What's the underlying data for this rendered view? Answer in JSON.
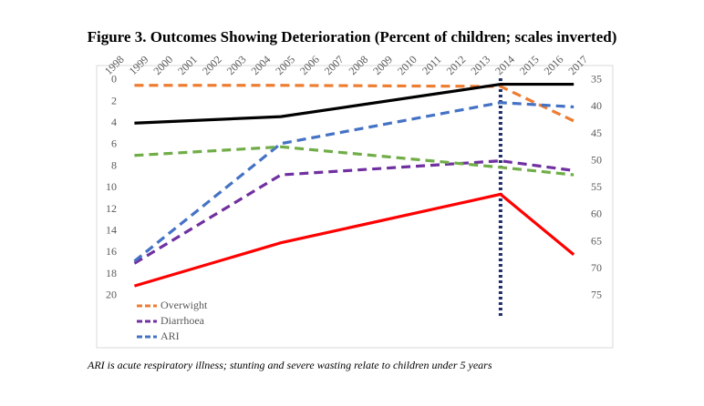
{
  "chart_data": {
    "type": "line",
    "title": "Figure 3. Outcomes Showing Deterioration (Percent of children; scales inverted)",
    "note": "ARI is acute respiratory illness; stunting and severe wasting relate to children under 5 years",
    "x": [
      1999,
      2005,
      2014,
      2017
    ],
    "xlim": [
      1997.9,
      2018.6
    ],
    "xticks": [
      1998,
      1999,
      2000,
      2001,
      2002,
      2003,
      2004,
      2005,
      2006,
      2007,
      2008,
      2009,
      2010,
      2011,
      2012,
      2013,
      2014,
      2015,
      2016,
      2017
    ],
    "ylim": [
      -1,
      25
    ],
    "yticks": [
      0,
      2,
      4,
      6,
      8,
      10,
      12,
      14,
      16,
      18,
      20
    ],
    "y2lim": [
      33,
      85
    ],
    "y2ticks": [
      35,
      40,
      45,
      50,
      55,
      60,
      65,
      70,
      75
    ],
    "inverted": true,
    "vline_x": 2014,
    "vline_color": "#1f2d6b",
    "series": [
      {
        "name": "Overwight",
        "color": "#ed7d31",
        "dashed": true,
        "values": [
          0.5,
          0.5,
          0.6,
          3.8
        ]
      },
      {
        "name": "Diarrhoea",
        "color": "#7030a0",
        "dashed": true,
        "values": [
          17.0,
          8.8,
          7.5,
          8.4
        ]
      },
      {
        "name": "ARI",
        "color": "#4472c4",
        "dashed": true,
        "values": [
          16.8,
          5.9,
          2.1,
          2.5
        ]
      },
      {
        "color": "#70ad47",
        "dashed": true,
        "values": [
          7.0,
          6.2,
          8.1,
          8.8
        ]
      },
      {
        "color": "#000000",
        "dashed": false,
        "axis": "y2",
        "values": [
          43.0,
          41.8,
          35.8,
          35.8
        ]
      },
      {
        "color": "#ff0000",
        "dashed": false,
        "values": [
          19.1,
          15.1,
          10.6,
          16.2
        ]
      }
    ]
  }
}
